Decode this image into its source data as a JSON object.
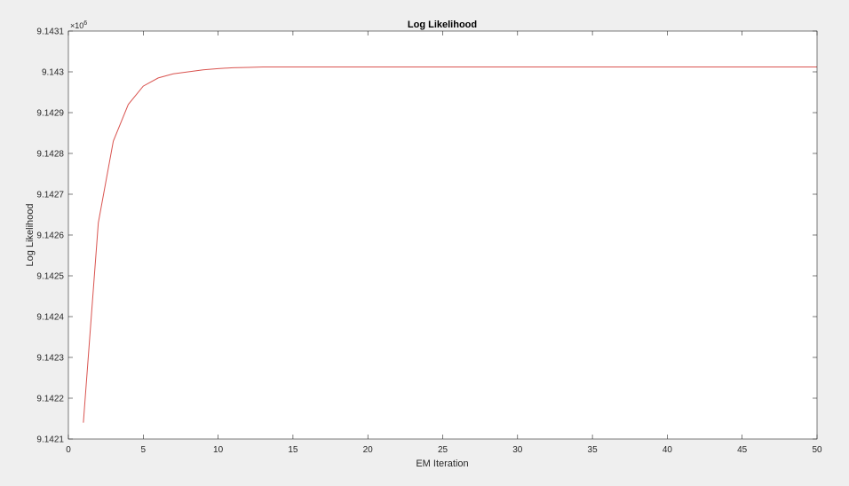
{
  "chart_data": {
    "type": "line",
    "title": "Log Likelihood",
    "xlabel": "EM Iteration",
    "ylabel": "Log Likelihood",
    "y_exponent": "×10",
    "y_exponent_power": "6",
    "xlim": [
      0,
      50
    ],
    "ylim": [
      9.1421,
      9.1431
    ],
    "xticks": [
      0,
      5,
      10,
      15,
      20,
      25,
      30,
      35,
      40,
      45,
      50
    ],
    "xtick_labels": [
      "0",
      "5",
      "10",
      "15",
      "20",
      "25",
      "30",
      "35",
      "40",
      "45",
      "50"
    ],
    "yticks": [
      9.1421,
      9.1422,
      9.1423,
      9.1424,
      9.1425,
      9.1426,
      9.1427,
      9.1428,
      9.1429,
      9.143,
      9.1431
    ],
    "ytick_labels": [
      "9.1421",
      "9.1422",
      "9.1423",
      "9.1424",
      "9.1425",
      "9.1426",
      "9.1427",
      "9.1428",
      "9.1429",
      "9.143",
      "9.1431"
    ],
    "grid": false,
    "line_color": "#d9534f",
    "series": [
      {
        "x": [
          1,
          2,
          3,
          4,
          5,
          6,
          7,
          8,
          9,
          10,
          11,
          12,
          13,
          14,
          15,
          16,
          17,
          18,
          19,
          20,
          21,
          22,
          23,
          24,
          25,
          26,
          27,
          28,
          29,
          30,
          31,
          32,
          33,
          34,
          35,
          36,
          37,
          38,
          39,
          40,
          41,
          42,
          43,
          44,
          45,
          46,
          47,
          48,
          49,
          50
        ],
        "values": [
          9.14214,
          9.14263,
          9.14283,
          9.14292,
          9.142965,
          9.142985,
          9.142995,
          9.143,
          9.143005,
          9.143008,
          9.14301,
          9.143011,
          9.143012,
          9.143012,
          9.143012,
          9.143012,
          9.143012,
          9.143012,
          9.143012,
          9.143012,
          9.143012,
          9.143012,
          9.143012,
          9.143012,
          9.143012,
          9.143012,
          9.143012,
          9.143012,
          9.143012,
          9.143012,
          9.143012,
          9.143012,
          9.143012,
          9.143012,
          9.143012,
          9.143012,
          9.143012,
          9.143012,
          9.143012,
          9.143012,
          9.143012,
          9.143012,
          9.143012,
          9.143012,
          9.143012,
          9.143012,
          9.143012,
          9.143012,
          9.143012,
          9.143012
        ]
      }
    ]
  }
}
